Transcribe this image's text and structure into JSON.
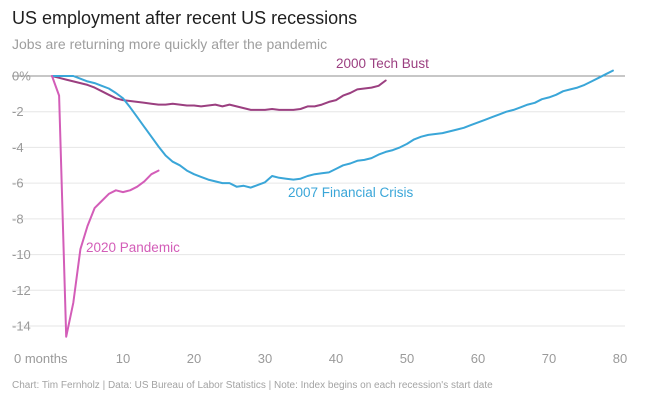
{
  "header": {
    "title": "US employment after recent US recessions",
    "subtitle": "Jobs are returning more quickly after the pandemic"
  },
  "footer": {
    "note": "Chart: Tim Fernholz | Data: US Bureau of Labor Statistics | Note: Index begins on each recession's start date"
  },
  "chart_data": {
    "type": "line",
    "title": "US employment after recent US recessions",
    "subtitle": "Jobs are returning more quickly after the pandemic",
    "xlabel": "months",
    "ylabel": "",
    "xlim": [
      0,
      80
    ],
    "ylim": [
      -15,
      0.6
    ],
    "x_ticks": [
      0,
      10,
      20,
      30,
      40,
      50,
      60,
      70,
      80
    ],
    "x_tick_labels": [
      "0 months",
      "10",
      "20",
      "30",
      "40",
      "50",
      "60",
      "70",
      "80"
    ],
    "y_ticks": [
      0,
      -2,
      -4,
      -6,
      -8,
      -10,
      -12,
      -14
    ],
    "y_tick_labels": [
      "0%",
      "-2",
      "-4",
      "-6",
      "-8",
      "-10",
      "-12",
      "-14"
    ],
    "grid": true,
    "series": [
      {
        "name": "2000 Tech Bust",
        "color": "#9b3f80",
        "x": [
          0,
          1,
          2,
          3,
          4,
          5,
          6,
          7,
          8,
          9,
          10,
          11,
          12,
          13,
          14,
          15,
          16,
          17,
          18,
          19,
          20,
          21,
          22,
          23,
          24,
          25,
          26,
          27,
          28,
          29,
          30,
          31,
          32,
          33,
          34,
          35,
          36,
          37,
          38,
          39,
          40,
          41,
          42,
          43,
          44,
          45,
          46,
          47
        ],
        "values": [
          0,
          -0.1,
          -0.2,
          -0.3,
          -0.4,
          -0.5,
          -0.65,
          -0.85,
          -1.05,
          -1.25,
          -1.35,
          -1.4,
          -1.45,
          -1.5,
          -1.55,
          -1.6,
          -1.6,
          -1.55,
          -1.6,
          -1.65,
          -1.65,
          -1.7,
          -1.65,
          -1.6,
          -1.7,
          -1.6,
          -1.7,
          -1.8,
          -1.9,
          -1.9,
          -1.9,
          -1.85,
          -1.9,
          -1.9,
          -1.9,
          -1.85,
          -1.7,
          -1.7,
          -1.6,
          -1.45,
          -1.35,
          -1.1,
          -0.95,
          -0.75,
          -0.7,
          -0.65,
          -0.55,
          -0.25
        ]
      },
      {
        "name": "2007 Financial Crisis",
        "color": "#3aa6d8",
        "x": [
          0,
          1,
          2,
          3,
          4,
          5,
          6,
          7,
          8,
          9,
          10,
          11,
          12,
          13,
          14,
          15,
          16,
          17,
          18,
          19,
          20,
          21,
          22,
          23,
          24,
          25,
          26,
          27,
          28,
          29,
          30,
          31,
          32,
          33,
          34,
          35,
          36,
          37,
          38,
          39,
          40,
          41,
          42,
          43,
          44,
          45,
          46,
          47,
          48,
          49,
          50,
          51,
          52,
          53,
          54,
          55,
          56,
          57,
          58,
          59,
          60,
          61,
          62,
          63,
          64,
          65,
          66,
          67,
          68,
          69,
          70,
          71,
          72,
          73,
          74,
          75,
          76,
          77,
          78,
          79
        ],
        "values": [
          0,
          0,
          0,
          0,
          -0.15,
          -0.3,
          -0.4,
          -0.55,
          -0.7,
          -0.95,
          -1.25,
          -1.75,
          -2.3,
          -2.85,
          -3.4,
          -3.95,
          -4.45,
          -4.8,
          -5.0,
          -5.3,
          -5.5,
          -5.65,
          -5.8,
          -5.9,
          -6.0,
          -6.0,
          -6.2,
          -6.15,
          -6.25,
          -6.1,
          -5.95,
          -5.6,
          -5.7,
          -5.75,
          -5.8,
          -5.75,
          -5.6,
          -5.5,
          -5.45,
          -5.4,
          -5.2,
          -5.0,
          -4.9,
          -4.75,
          -4.7,
          -4.6,
          -4.4,
          -4.25,
          -4.15,
          -4.0,
          -3.8,
          -3.55,
          -3.4,
          -3.3,
          -3.25,
          -3.2,
          -3.1,
          -3.0,
          -2.9,
          -2.75,
          -2.6,
          -2.45,
          -2.3,
          -2.15,
          -2.0,
          -1.9,
          -1.75,
          -1.6,
          -1.5,
          -1.3,
          -1.2,
          -1.05,
          -0.85,
          -0.75,
          -0.65,
          -0.5,
          -0.3,
          -0.1,
          0.1,
          0.3
        ]
      },
      {
        "name": "2020 Pandemic",
        "color": "#d35db8",
        "x": [
          0,
          1,
          2,
          3,
          4,
          5,
          6,
          7,
          8,
          9,
          10,
          11,
          12,
          13,
          14,
          15
        ],
        "values": [
          0,
          -1.1,
          -14.6,
          -12.7,
          -9.7,
          -8.4,
          -7.4,
          -7.0,
          -6.6,
          -6.4,
          -6.5,
          -6.4,
          -6.2,
          -5.9,
          -5.5,
          -5.3
        ]
      }
    ]
  }
}
